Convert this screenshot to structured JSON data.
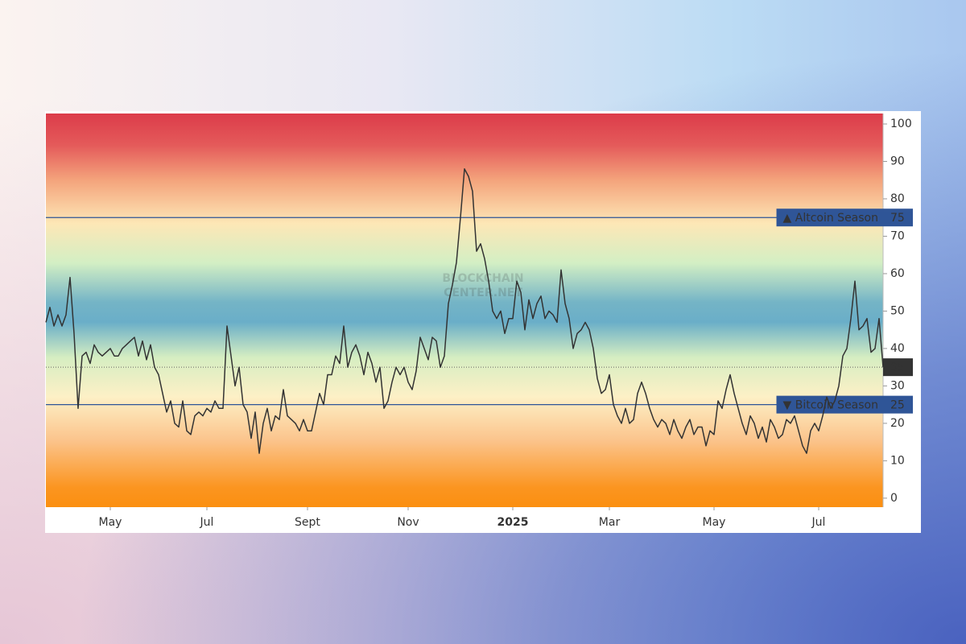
{
  "chart_data": {
    "type": "line",
    "values": [
      47,
      51,
      46,
      49,
      46,
      49,
      59,
      44,
      24,
      38,
      39,
      36,
      41,
      39,
      38,
      39,
      40,
      38,
      38,
      40,
      41,
      42,
      43,
      38,
      42,
      37,
      41,
      35,
      33,
      28,
      23,
      26,
      20,
      19,
      26,
      18,
      17,
      22,
      23,
      22,
      24,
      23,
      26,
      24,
      24,
      46,
      38,
      30,
      35,
      25,
      23,
      16,
      23,
      12,
      20,
      24,
      18,
      22,
      21,
      29,
      22,
      21,
      20,
      18,
      21,
      18,
      18,
      23,
      28,
      25,
      33,
      33,
      38,
      36,
      46,
      35,
      39,
      41,
      38,
      33,
      39,
      36,
      31,
      35,
      24,
      26,
      31,
      35,
      33,
      35,
      31,
      29,
      34,
      43,
      40,
      37,
      43,
      42,
      35,
      38,
      52,
      57,
      63,
      75,
      88,
      86,
      82,
      66,
      68,
      64,
      58,
      50,
      48,
      50,
      44,
      48,
      48,
      58,
      55,
      45,
      53,
      48,
      52,
      54,
      48,
      50,
      49,
      47,
      61,
      52,
      48,
      40,
      44,
      45,
      47,
      45,
      40,
      32,
      28,
      29,
      33,
      25,
      22,
      20,
      24,
      20,
      21,
      28,
      31,
      28,
      24,
      21,
      19,
      21,
      20,
      17,
      21,
      18,
      16,
      19,
      21,
      17,
      19,
      19,
      14,
      18,
      17,
      26,
      24,
      29,
      33,
      28,
      24,
      20,
      17,
      22,
      20,
      16,
      19,
      15,
      21,
      19,
      16,
      17,
      21,
      20,
      22,
      18,
      14,
      12,
      18,
      20,
      18,
      22,
      27,
      24,
      26,
      30,
      38,
      40,
      48,
      58,
      45,
      46,
      48,
      39,
      40,
      48,
      35
    ],
    "color": "#333333",
    "xlim": [
      0,
      208
    ],
    "xticks": [
      {
        "value": 16,
        "label": "May"
      },
      {
        "value": 40,
        "label": "Jul"
      },
      {
        "value": 65,
        "label": "Sept"
      },
      {
        "value": 90,
        "label": "Nov"
      },
      {
        "value": 116,
        "label": "2025"
      },
      {
        "value": 140,
        "label": "Mar"
      },
      {
        "value": 166,
        "label": "May"
      },
      {
        "value": 192,
        "label": "Jul"
      }
    ],
    "ylim": [
      -2.4,
      102.8
    ],
    "yticks": [
      0,
      10,
      20,
      30,
      40,
      50,
      60,
      70,
      80,
      90,
      100
    ],
    "reference_lines": [
      {
        "label": "▲ Altcoin Season",
        "value": 75,
        "color": "#2f5597"
      },
      {
        "label": "▼ Bitcoin Season",
        "value": 25,
        "color": "#2f5597"
      }
    ],
    "watermark": [
      "BLOCKCHAIN",
      "CENTER.NET"
    ]
  }
}
